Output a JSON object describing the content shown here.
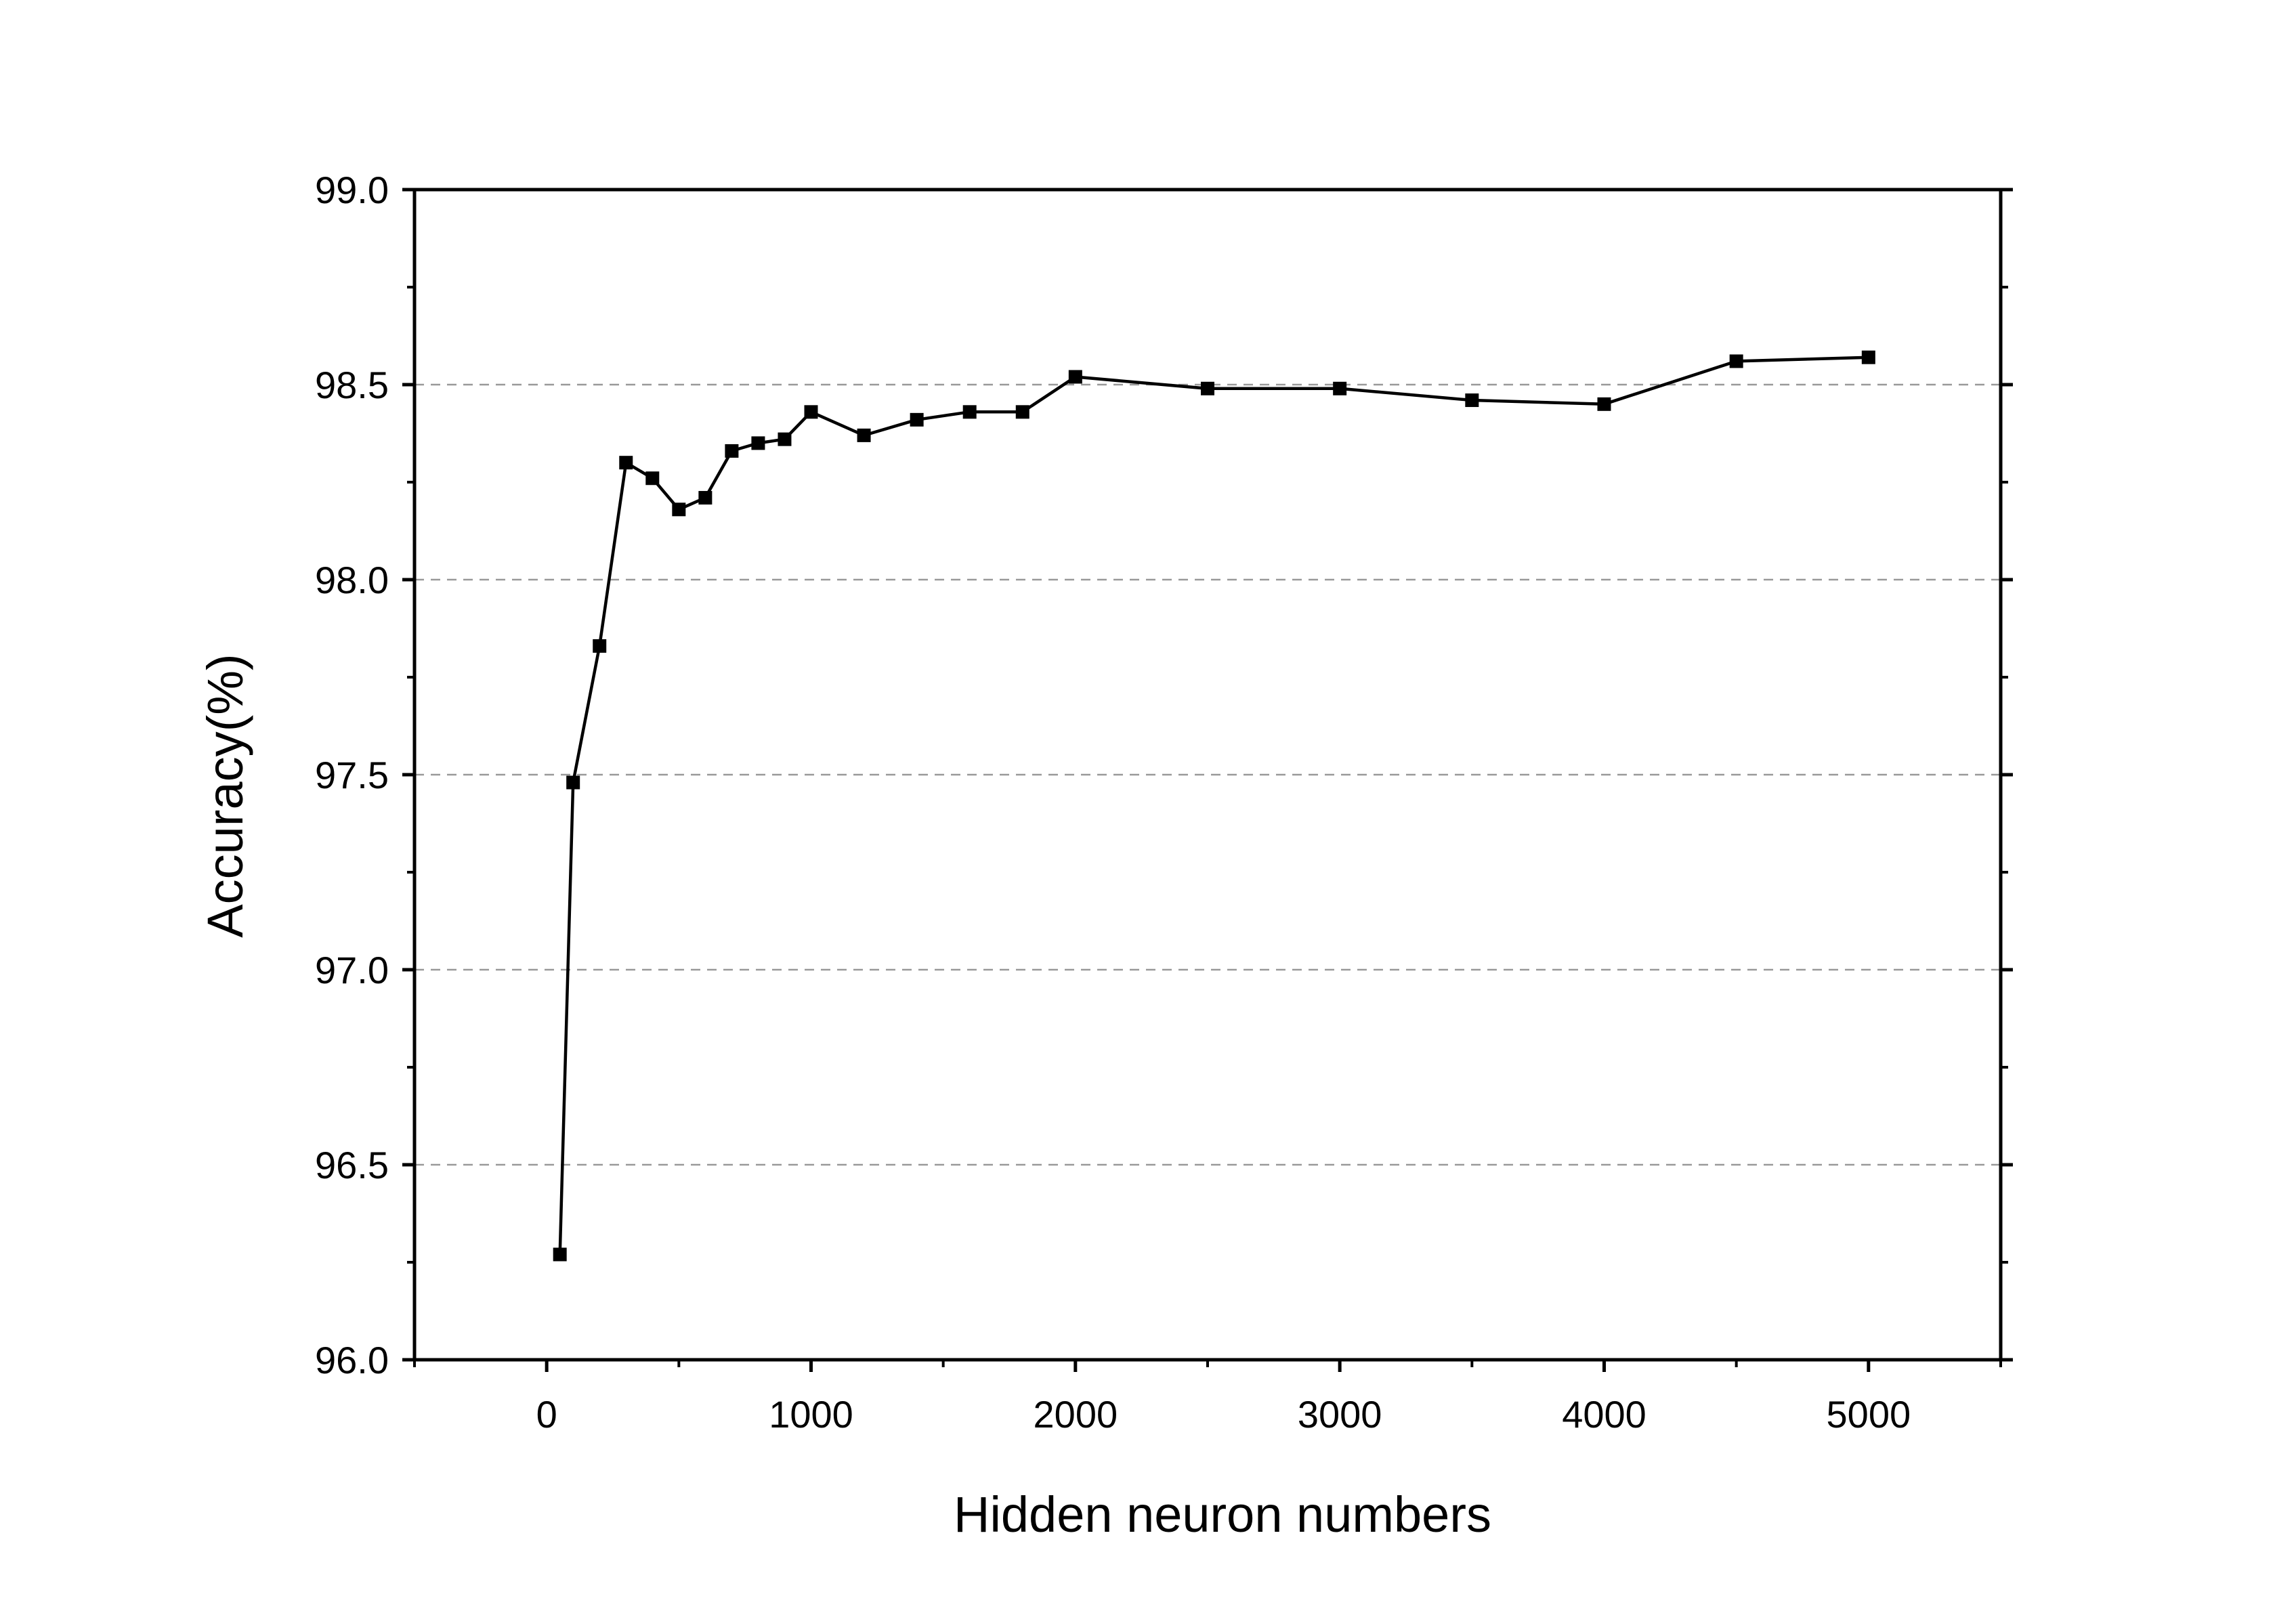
{
  "chart_data": {
    "type": "line",
    "title": "",
    "xlabel": "Hidden neuron numbers",
    "ylabel": "Accuracy(%)",
    "xlim": [
      -500,
      5500
    ],
    "ylim": [
      96.0,
      99.0
    ],
    "x_ticks": [
      0,
      1000,
      2000,
      3000,
      4000,
      5000
    ],
    "x_tick_labels": [
      "0",
      "1000",
      "2000",
      "3000",
      "4000",
      "5000"
    ],
    "y_ticks": [
      96.0,
      96.5,
      97.0,
      97.5,
      98.0,
      98.5,
      99.0
    ],
    "y_tick_labels": [
      "96.0",
      "96.5",
      "97.0",
      "97.5",
      "98.0",
      "98.5",
      "99.0"
    ],
    "grid": "horizontal dashed",
    "marker": "square",
    "series": [
      {
        "x": [
          50,
          100,
          200,
          300,
          400,
          500,
          600,
          700,
          800,
          900,
          1000,
          1200,
          1400,
          1600,
          1800,
          2000,
          2500,
          3000,
          3500,
          4000,
          4500,
          5000
        ],
        "values": [
          96.27,
          97.48,
          97.83,
          98.3,
          98.26,
          98.18,
          98.21,
          98.33,
          98.35,
          98.36,
          98.43,
          98.37,
          98.41,
          98.43,
          98.43,
          98.52,
          98.49,
          98.49,
          98.46,
          98.45,
          98.56,
          98.57
        ]
      }
    ],
    "colors": {
      "line": "#000000",
      "marker": "#000000",
      "grid": "#999999",
      "axis": "#000000"
    }
  }
}
